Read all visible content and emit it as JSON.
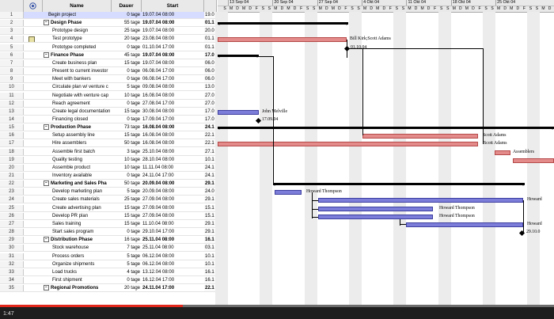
{
  "columns": {
    "num": "",
    "ind": "",
    "name": "Name",
    "duration": "Dauer",
    "start": "Start",
    "finish": ""
  },
  "rows": [
    {
      "num": "1",
      "name": "Begin project",
      "duration": "0 tage",
      "start": "19.07.04 08:00",
      "finish": "19.0",
      "level": 1,
      "summary": false
    },
    {
      "num": "2",
      "name": "Design Phase",
      "duration": "55 tage",
      "start": "19.07.04 08:00",
      "finish": "01.1",
      "level": 0,
      "summary": true
    },
    {
      "num": "3",
      "name": "Prototype design",
      "duration": "25 tage",
      "start": "19.07.04 08:00",
      "finish": "20.0",
      "level": 2,
      "summary": false
    },
    {
      "num": "4",
      "name": "Test prototype",
      "duration": "20 tage",
      "start": "23.08.04 08:00",
      "finish": "01.1",
      "level": 2,
      "summary": false,
      "note": true
    },
    {
      "num": "5",
      "name": "Prototype completed",
      "duration": "0 tage",
      "start": "01.10.04 17:00",
      "finish": "01.1",
      "level": 2,
      "summary": false
    },
    {
      "num": "6",
      "name": "Finance Phase",
      "duration": "45 tage",
      "start": "19.07.04 08:00",
      "finish": "17.0",
      "level": 0,
      "summary": true
    },
    {
      "num": "7",
      "name": "Create business plan",
      "duration": "15 tage",
      "start": "19.07.04 08:00",
      "finish": "06.0",
      "level": 2,
      "summary": false
    },
    {
      "num": "8",
      "name": "Present to current investor",
      "duration": "0 tage",
      "start": "06.08.04 17:00",
      "finish": "06.0",
      "level": 2,
      "summary": false
    },
    {
      "num": "9",
      "name": "Meet with bankers",
      "duration": "0 tage",
      "start": "06.08.04 17:00",
      "finish": "06.0",
      "level": 2,
      "summary": false
    },
    {
      "num": "10",
      "name": "Circulate plan w/ venture c",
      "duration": "5 tage",
      "start": "09.08.04 08:00",
      "finish": "13.0",
      "level": 2,
      "summary": false
    },
    {
      "num": "11",
      "name": "Negotiate with venture cap",
      "duration": "10 tage",
      "start": "16.08.04 08:00",
      "finish": "27.0",
      "level": 2,
      "summary": false
    },
    {
      "num": "12",
      "name": "Reach agreement",
      "duration": "0 tage",
      "start": "27.08.04 17:00",
      "finish": "27.0",
      "level": 2,
      "summary": false
    },
    {
      "num": "13",
      "name": "Create legal documentation",
      "duration": "15 tage",
      "start": "30.08.04 08:00",
      "finish": "17.0",
      "level": 2,
      "summary": false
    },
    {
      "num": "14",
      "name": "Financing closed",
      "duration": "0 tage",
      "start": "17.09.04 17:00",
      "finish": "17.0",
      "level": 2,
      "summary": false
    },
    {
      "num": "15",
      "name": "Production Phase",
      "duration": "73 tage",
      "start": "16.08.04 08:00",
      "finish": "24.1",
      "level": 0,
      "summary": true
    },
    {
      "num": "16",
      "name": "Setup assembly line",
      "duration": "15 tage",
      "start": "16.08.04 08:00",
      "finish": "22.1",
      "level": 2,
      "summary": false
    },
    {
      "num": "17",
      "name": "Hire assemblers",
      "duration": "50 tage",
      "start": "16.08.04 08:00",
      "finish": "22.1",
      "level": 2,
      "summary": false
    },
    {
      "num": "18",
      "name": "Assemble first batch",
      "duration": "3 tage",
      "start": "25.10.04 08:00",
      "finish": "27.1",
      "level": 2,
      "summary": false
    },
    {
      "num": "19",
      "name": "Quality testing",
      "duration": "10 tage",
      "start": "28.10.04 08:00",
      "finish": "10.1",
      "level": 2,
      "summary": false
    },
    {
      "num": "20",
      "name": "Assemble product",
      "duration": "10 tage",
      "start": "11.11.04 08:00",
      "finish": "24.1",
      "level": 2,
      "summary": false
    },
    {
      "num": "21",
      "name": "Inventory available",
      "duration": "0 tage",
      "start": "24.11.04 17:00",
      "finish": "24.1",
      "level": 2,
      "summary": false
    },
    {
      "num": "22",
      "name": "Marketing and Sales Pha",
      "duration": "50 tage",
      "start": "20.09.04 08:00",
      "finish": "29.1",
      "level": 0,
      "summary": true
    },
    {
      "num": "23",
      "name": "Develop marketing plan",
      "duration": "5 tage",
      "start": "20.09.04 08:00",
      "finish": "24.0",
      "level": 2,
      "summary": false
    },
    {
      "num": "24",
      "name": "Create sales materials",
      "duration": "25 tage",
      "start": "27.09.04 08:00",
      "finish": "29.1",
      "level": 2,
      "summary": false
    },
    {
      "num": "25",
      "name": "Create advertising plan",
      "duration": "15 tage",
      "start": "27.09.04 08:00",
      "finish": "15.1",
      "level": 2,
      "summary": false
    },
    {
      "num": "26",
      "name": "Develop PR plan",
      "duration": "15 tage",
      "start": "27.09.04 08:00",
      "finish": "15.1",
      "level": 2,
      "summary": false
    },
    {
      "num": "27",
      "name": "Sales training",
      "duration": "15 tage",
      "start": "11.10.04 08:00",
      "finish": "29.1",
      "level": 2,
      "summary": false
    },
    {
      "num": "28",
      "name": "Start sales program",
      "duration": "0 tage",
      "start": "29.10.04 17:00",
      "finish": "29.1",
      "level": 2,
      "summary": false
    },
    {
      "num": "29",
      "name": "Distribution Phase",
      "duration": "16 tage",
      "start": "25.11.04 08:00",
      "finish": "16.1",
      "level": 0,
      "summary": true
    },
    {
      "num": "30",
      "name": "Stock warehouse",
      "duration": "7 tage",
      "start": "25.11.04 08:00",
      "finish": "03.1",
      "level": 2,
      "summary": false
    },
    {
      "num": "31",
      "name": "Process orders",
      "duration": "5 tage",
      "start": "06.12.04 08:00",
      "finish": "10.1",
      "level": 2,
      "summary": false
    },
    {
      "num": "32",
      "name": "Organize shipments",
      "duration": "5 tage",
      "start": "06.12.04 08:00",
      "finish": "10.1",
      "level": 2,
      "summary": false
    },
    {
      "num": "33",
      "name": "Load trucks",
      "duration": "4 tage",
      "start": "13.12.04 08:00",
      "finish": "16.1",
      "level": 2,
      "summary": false
    },
    {
      "num": "34",
      "name": "First shipment",
      "duration": "0 tage",
      "start": "16.12.04 17:00",
      "finish": "16.1",
      "level": 2,
      "summary": false
    },
    {
      "num": "35",
      "name": "Regional Promotions",
      "duration": "20 tage",
      "start": "24.11.04 17:00",
      "finish": "22.1",
      "level": 0,
      "summary": true
    }
  ],
  "timeline": {
    "weeks": [
      "13 Sep 04",
      "20 Sep 04",
      "27 Sep 04",
      "4 Okt 04",
      "11 Okt 04",
      "18 Okt 04",
      "25 Okt 04"
    ],
    "days": [
      "S",
      "M",
      "D",
      "M",
      "D",
      "F",
      "S"
    ]
  },
  "gantt_labels": {
    "r4": "Bill Kirk;Scott Adams",
    "r5": "01.10.04",
    "r13": "John Melville",
    "r14": "17.09.04",
    "r16": "Scott Adams",
    "r17": "Scott Adams",
    "r18": "Assemblers",
    "r23": "Howard Thompson",
    "r24": "Howard",
    "r25": "Howard Thompson",
    "r26": "Howard Thompson",
    "r27": "Howard",
    "r28": "29.10.0"
  },
  "video": {
    "time": "1:47",
    "progress": 0.33
  }
}
